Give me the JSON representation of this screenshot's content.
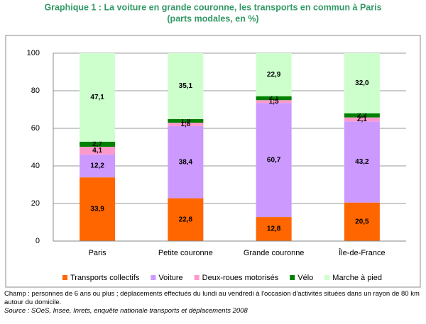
{
  "chart_data": {
    "type": "stacked_bar",
    "title": "Graphique 1 : La voiture en grande couronne, les transports en commun à Paris",
    "subtitle": "(parts modales, en %)",
    "categories": [
      "Paris",
      "Petite couronne",
      "Grande couronne",
      "Île-de-France"
    ],
    "series": [
      {
        "name": "Transports collectifs",
        "color": "#ff6600",
        "values": [
          33.9,
          22.8,
          12.8,
          20.5
        ],
        "value_labels": [
          "33,9",
          "22,8",
          "12,8",
          "20,5"
        ]
      },
      {
        "name": "Voiture",
        "color": "#cc99ff",
        "values": [
          12.2,
          38.4,
          60.7,
          43.2
        ],
        "value_labels": [
          "12,2",
          "38,4",
          "60,7",
          "43,2"
        ]
      },
      {
        "name": "Deux-roues motorisés",
        "color": "#ff99cc",
        "values": [
          4.1,
          1.8,
          1.5,
          2.1
        ],
        "value_labels": [
          "4,1",
          "1,8",
          "1,5",
          "2,1"
        ]
      },
      {
        "name": "Vélo",
        "color": "#008000",
        "values": [
          2.7,
          1.9,
          2.1,
          2.2
        ],
        "value_labels": [
          "2,7",
          "1,9",
          "2,1",
          "2,2"
        ]
      },
      {
        "name": "Marche à pied",
        "color": "#ccffcc",
        "values": [
          47.1,
          35.1,
          22.9,
          32
        ],
        "value_labels": [
          "47,1",
          "35,1",
          "22,9",
          "32,0"
        ]
      }
    ],
    "ylim": [
      0,
      100
    ],
    "yticks": [
      0,
      20,
      40,
      60,
      80,
      100
    ],
    "grid": true,
    "legend": "bottom",
    "notes": "Champ : personnes de 6 ans ou plus ; déplacements effectués du lundi au vendredi à l'occasion d'activités situées dans un rayon de 80 km autour du domicile.",
    "source": "Source : SOeS, Insee, Inrets, enquête nationale transports et déplacements 2008"
  }
}
